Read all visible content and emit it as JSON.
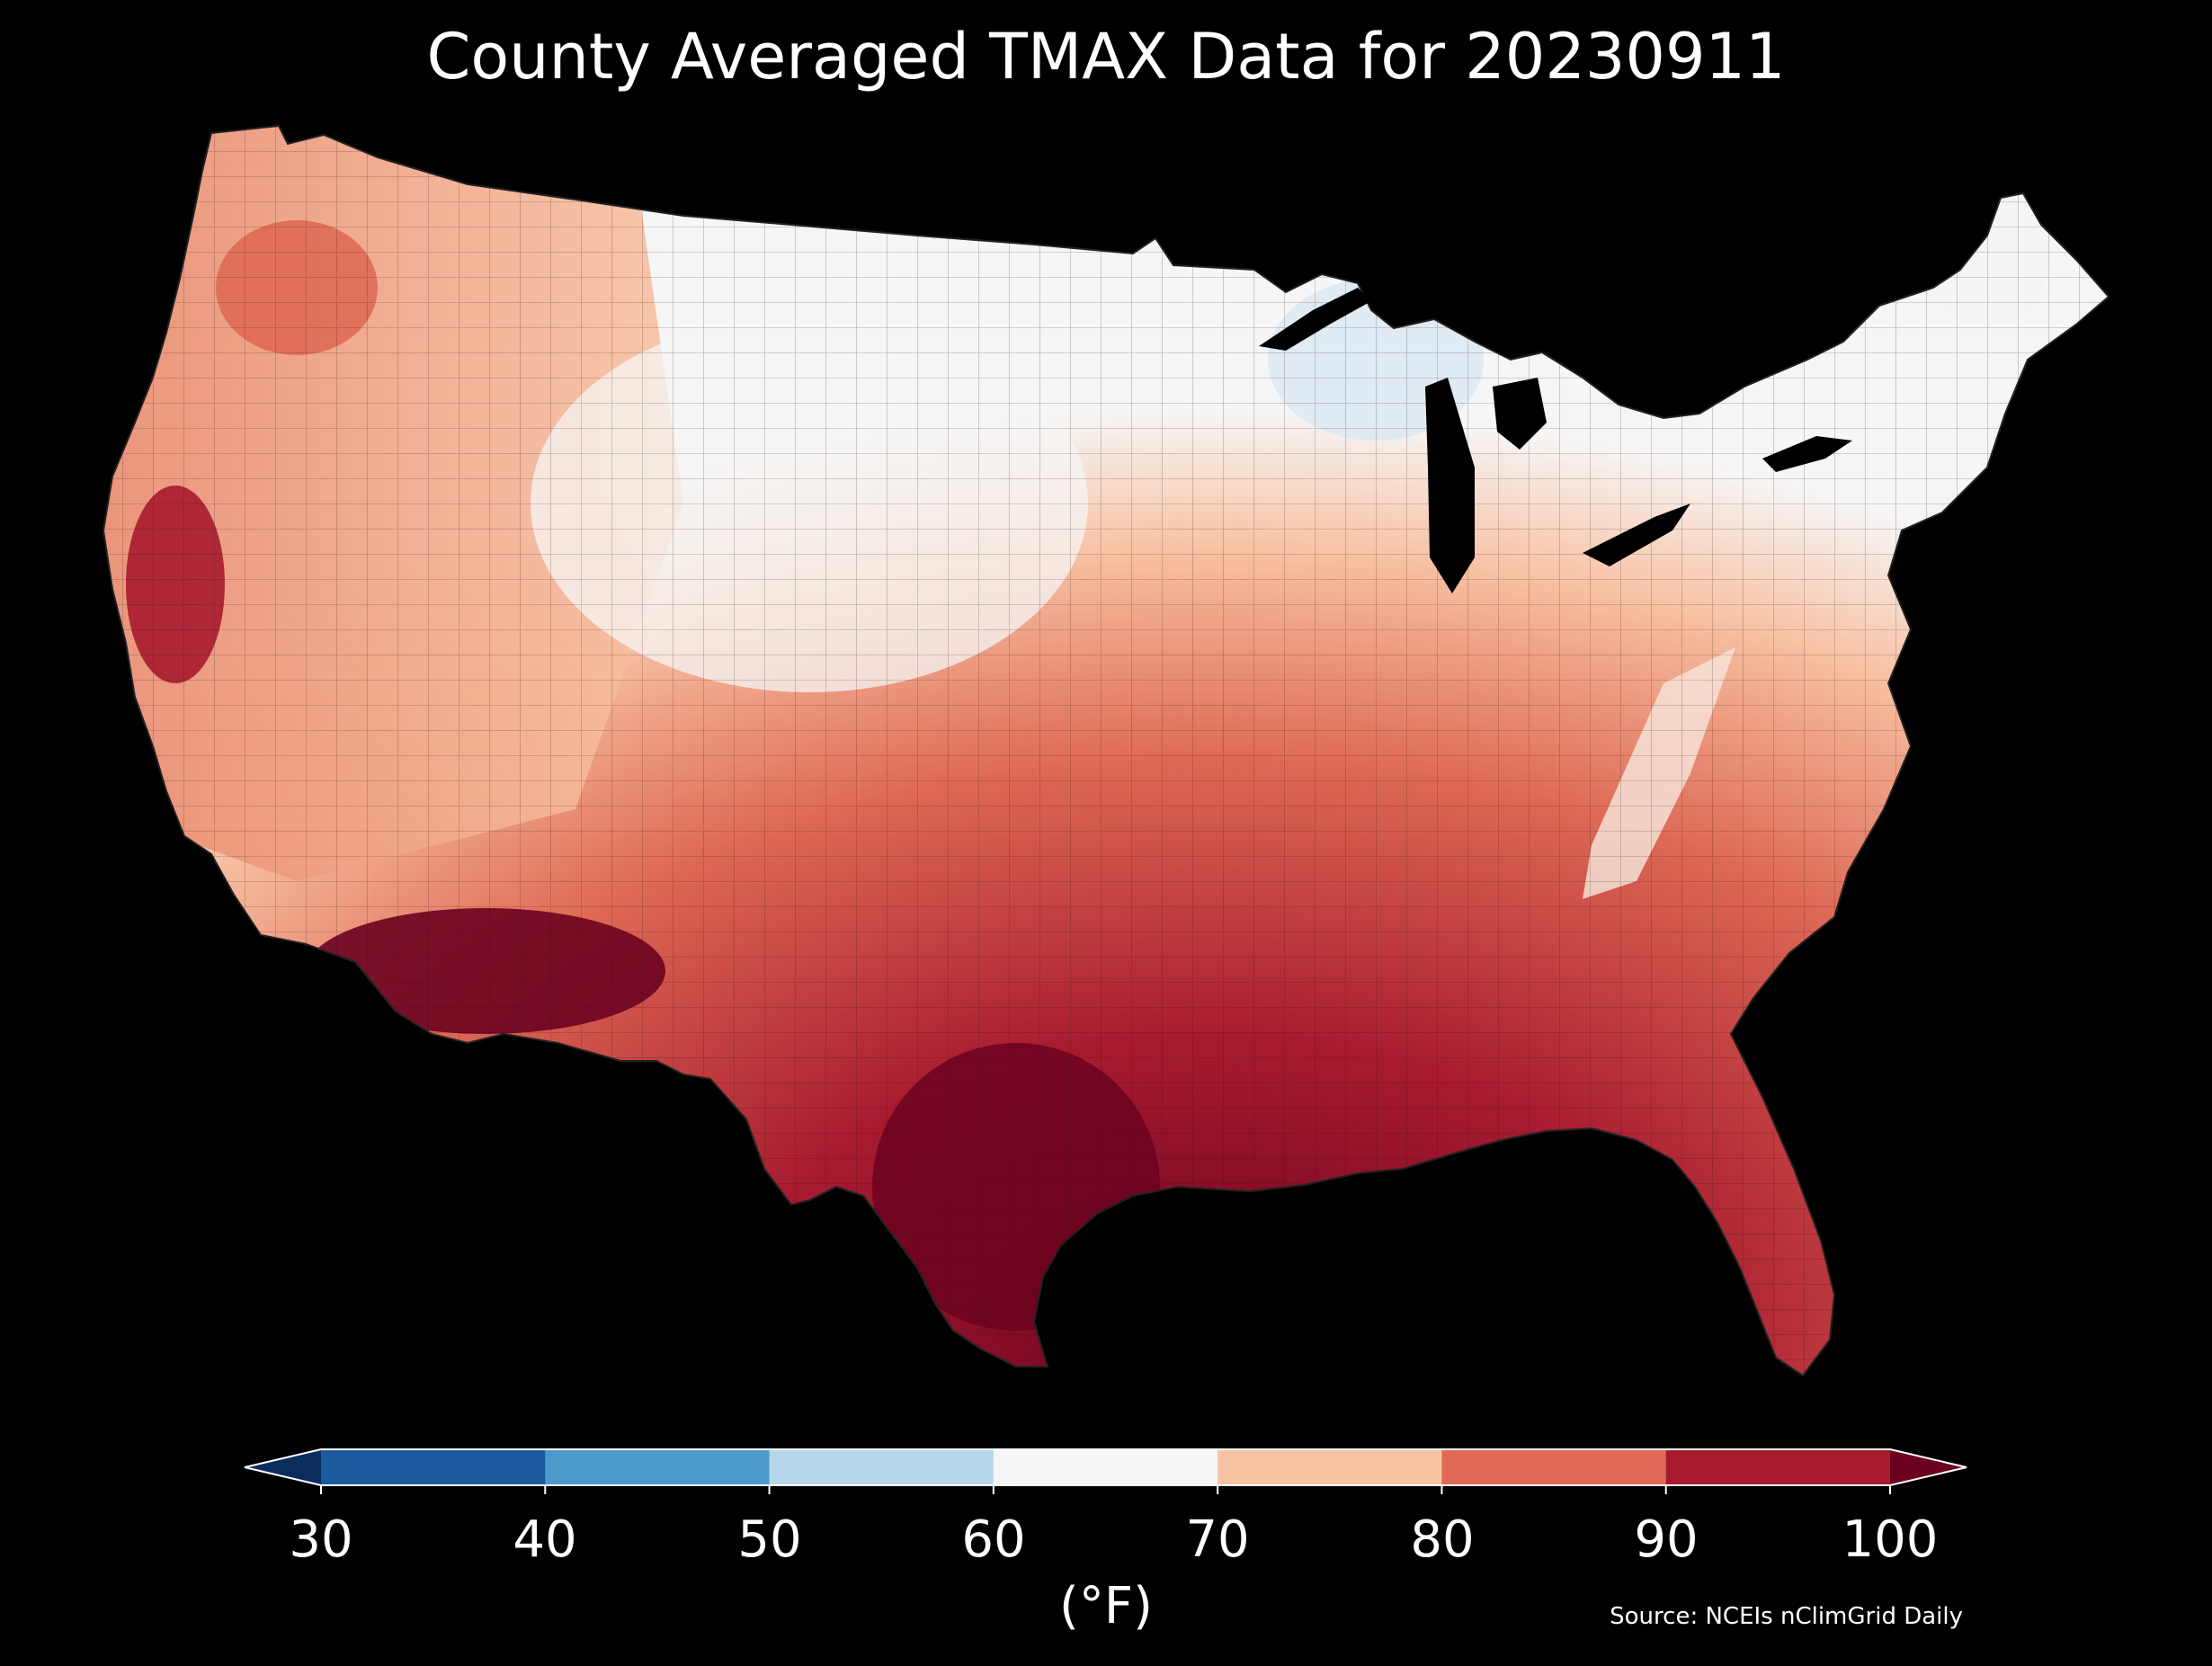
{
  "title": "County Averaged TMAX Data for 20230911",
  "colorbar": {
    "unit_label": "(°F)",
    "ticks": [
      "30",
      "40",
      "50",
      "60",
      "70",
      "80",
      "90",
      "100"
    ],
    "bins": [
      {
        "range": "<30",
        "color": "#0a2d5e"
      },
      {
        "range": "30-40",
        "color": "#1c5aa0"
      },
      {
        "range": "40-50",
        "color": "#4c9acb"
      },
      {
        "range": "50-60",
        "color": "#b6d7ea"
      },
      {
        "range": "60-70",
        "color": "#f6f6f6"
      },
      {
        "range": "70-80",
        "color": "#f8c2a4"
      },
      {
        "range": "80-90",
        "color": "#de6a55"
      },
      {
        "range": "90-100",
        "color": "#a81b2f"
      },
      {
        "range": ">100",
        "color": "#6b0220"
      }
    ],
    "extend": "both"
  },
  "source": "Source: NCEIs nClimGrid Daily",
  "map": {
    "region": "Contiguous United States counties",
    "style": {
      "background": "#000000",
      "border_color": "#111111"
    }
  }
}
